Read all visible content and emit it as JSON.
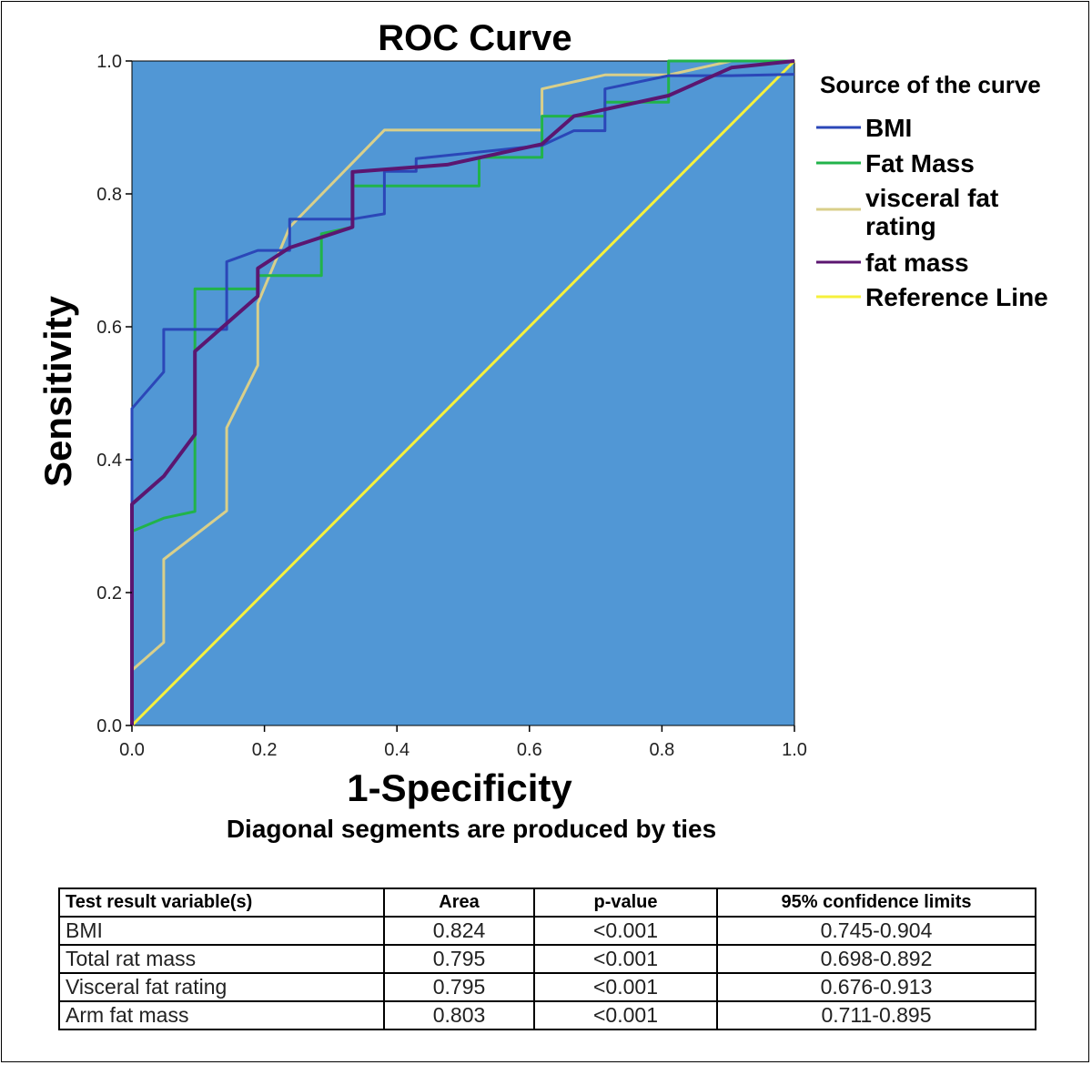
{
  "chart_data": {
    "type": "line",
    "title": "ROC Curve",
    "xlabel": "1-Specificity",
    "ylabel": "Sensitivity",
    "footnote": "Diagonal segments are produced by ties",
    "xlim": [
      0,
      1
    ],
    "ylim": [
      0,
      1
    ],
    "xticks": [
      "0.0",
      "0.2",
      "0.4",
      "0.6",
      "0.8",
      "1.0"
    ],
    "yticks": [
      "0.0",
      "0.2",
      "0.4",
      "0.6",
      "0.8",
      "1.0"
    ],
    "grid": false,
    "plot_background": "#5197d5",
    "legend": {
      "title": "Source of the curve",
      "position": "right"
    },
    "series": [
      {
        "name": "BMI",
        "color": "#2b47b8",
        "points": [
          [
            0,
            0
          ],
          [
            0,
            0.477
          ],
          [
            0.048,
            0.532
          ],
          [
            0.048,
            0.596
          ],
          [
            0.143,
            0.596
          ],
          [
            0.143,
            0.698
          ],
          [
            0.19,
            0.715
          ],
          [
            0.238,
            0.715
          ],
          [
            0.238,
            0.762
          ],
          [
            0.333,
            0.762
          ],
          [
            0.381,
            0.77
          ],
          [
            0.381,
            0.834
          ],
          [
            0.429,
            0.834
          ],
          [
            0.429,
            0.853
          ],
          [
            0.619,
            0.873
          ],
          [
            0.667,
            0.895
          ],
          [
            0.714,
            0.895
          ],
          [
            0.714,
            0.958
          ],
          [
            0.81,
            0.978
          ],
          [
            0.905,
            0.978
          ],
          [
            1,
            0.98
          ]
        ]
      },
      {
        "name": "Fat Mass",
        "color": "#21b34a",
        "points": [
          [
            0,
            0
          ],
          [
            0,
            0.292
          ],
          [
            0.048,
            0.312
          ],
          [
            0.095,
            0.322
          ],
          [
            0.095,
            0.657
          ],
          [
            0.19,
            0.657
          ],
          [
            0.19,
            0.677
          ],
          [
            0.286,
            0.677
          ],
          [
            0.286,
            0.74
          ],
          [
            0.333,
            0.75
          ],
          [
            0.333,
            0.812
          ],
          [
            0.524,
            0.812
          ],
          [
            0.524,
            0.855
          ],
          [
            0.619,
            0.855
          ],
          [
            0.619,
            0.917
          ],
          [
            0.714,
            0.917
          ],
          [
            0.714,
            0.938
          ],
          [
            0.81,
            0.938
          ],
          [
            0.81,
            1
          ],
          [
            1,
            1
          ]
        ]
      },
      {
        "name": "visceral fat rating",
        "color": "#d9cf8a",
        "points": [
          [
            0,
            0.083
          ],
          [
            0.048,
            0.125
          ],
          [
            0.048,
            0.25
          ],
          [
            0.143,
            0.323
          ],
          [
            0.143,
            0.448
          ],
          [
            0.19,
            0.542
          ],
          [
            0.19,
            0.635
          ],
          [
            0.238,
            0.75
          ],
          [
            0.381,
            0.896
          ],
          [
            0.619,
            0.896
          ],
          [
            0.619,
            0.958
          ],
          [
            0.714,
            0.979
          ],
          [
            0.81,
            0.979
          ],
          [
            0.905,
            1
          ],
          [
            1,
            1
          ]
        ]
      },
      {
        "name": "fat mass",
        "color": "#5b1670",
        "points": [
          [
            0,
            0
          ],
          [
            0,
            0.333
          ],
          [
            0.048,
            0.375
          ],
          [
            0.095,
            0.438
          ],
          [
            0.095,
            0.563
          ],
          [
            0.19,
            0.646
          ],
          [
            0.19,
            0.688
          ],
          [
            0.238,
            0.719
          ],
          [
            0.333,
            0.75
          ],
          [
            0.333,
            0.833
          ],
          [
            0.476,
            0.844
          ],
          [
            0.619,
            0.875
          ],
          [
            0.667,
            0.917
          ],
          [
            0.81,
            0.948
          ],
          [
            0.905,
            0.99
          ],
          [
            1,
            1
          ]
        ]
      },
      {
        "name": "Reference Line",
        "color": "#f6f03c",
        "points": [
          [
            0,
            0
          ],
          [
            1,
            1
          ]
        ]
      }
    ]
  },
  "results_table": {
    "headers": [
      "Test result variable(s)",
      "Area",
      "p-value",
      "95% confidence limits"
    ],
    "rows": [
      [
        "BMI",
        "0.824",
        "<0.001",
        "0.745-0.904"
      ],
      [
        "Total rat mass",
        "0.795",
        "<0.001",
        "0.698-0.892"
      ],
      [
        "Visceral fat rating",
        "0.795",
        "<0.001",
        "0.676-0.913"
      ],
      [
        "Arm fat mass",
        "0.803",
        "<0.001",
        "0.711-0.895"
      ]
    ]
  }
}
